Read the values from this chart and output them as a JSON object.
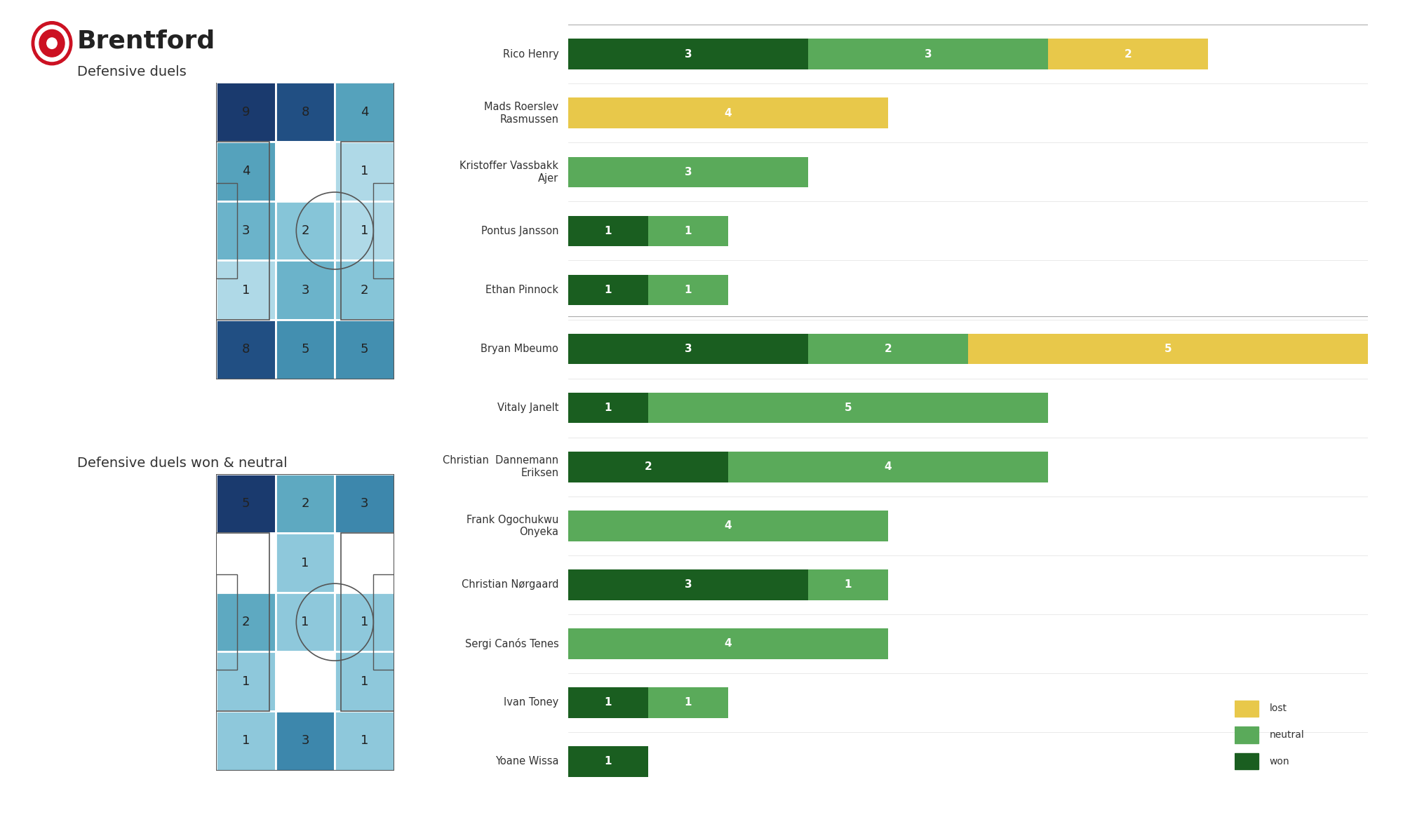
{
  "title": "Brentford",
  "heatmap1_title": "Defensive duels",
  "heatmap2_title": "Defensive duels won & neutral",
  "heatmap1_values": [
    [
      9,
      8,
      4
    ],
    [
      4,
      null,
      1
    ],
    [
      3,
      2,
      1
    ],
    [
      1,
      3,
      2
    ],
    [
      8,
      5,
      5
    ]
  ],
  "heatmap2_values": [
    [
      5,
      2,
      3
    ],
    [
      null,
      1,
      null
    ],
    [
      2,
      1,
      1
    ],
    [
      1,
      null,
      1
    ],
    [
      1,
      3,
      1
    ]
  ],
  "players": [
    "Rico Henry",
    "Mads Roerslev\nRasmussen",
    "Kristoffer Vassbakk\nAjer",
    "Pontus Jansson",
    "Ethan Pinnock",
    "Bryan Mbeumo",
    "Vitaly Janelt",
    "Christian  Dannemann\nEriksen",
    "Frank Ogochukwu\nOnyeka",
    "Christian Nørgaard",
    "Sergi Canós Tenes",
    "Ivan Toney",
    "Yoane Wissa"
  ],
  "won": [
    3,
    0,
    0,
    1,
    1,
    3,
    1,
    2,
    0,
    3,
    0,
    1,
    1
  ],
  "neutral": [
    3,
    0,
    3,
    1,
    1,
    2,
    5,
    4,
    4,
    1,
    4,
    1,
    0
  ],
  "lost": [
    2,
    4,
    0,
    0,
    0,
    5,
    0,
    0,
    0,
    0,
    0,
    0,
    0
  ],
  "color_won": "#1a5e20",
  "color_neutral": "#5aaa5a",
  "color_lost": "#e8c84a",
  "background_color": "#ffffff",
  "bar_max": 10,
  "separator_before": [
    5
  ]
}
